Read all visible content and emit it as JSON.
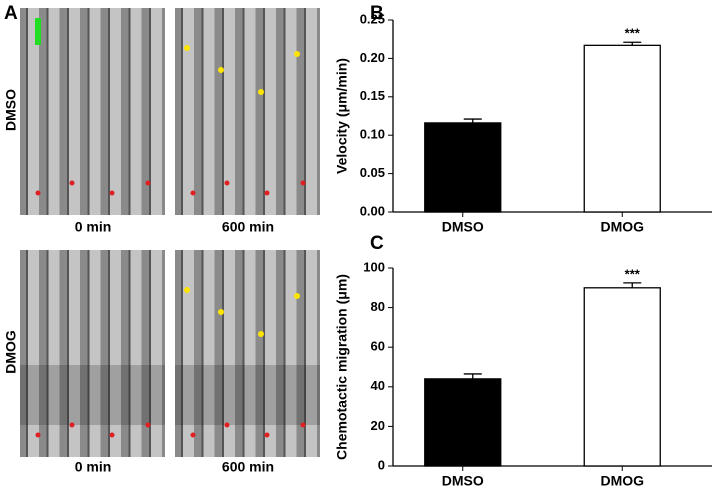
{
  "figure_labels": [
    "A",
    "B",
    "C"
  ],
  "panel_a": {
    "conditions": [
      "DMSO",
      "DMOG"
    ],
    "times": [
      "0 min",
      "600 min"
    ]
  },
  "chart_data": [
    {
      "type": "bar",
      "ylabel": "Velocity (μm/min)",
      "categories": [
        "DMSO",
        "DMOG"
      ],
      "values": [
        0.116,
        0.217
      ],
      "errors": [
        0.005,
        0.004
      ],
      "colors": [
        "#000000",
        "#ffffff"
      ],
      "annotations": [
        "***"
      ],
      "ylim": [
        0,
        0.25
      ],
      "yticks": [
        {
          "value": 0,
          "label": "0.00"
        },
        0.05,
        {
          "value": 0.1,
          "label": "0.10"
        },
        0.15,
        {
          "value": 0.2,
          "label": "0.20"
        },
        0.25
      ]
    },
    {
      "type": "bar",
      "ylabel": "Chemotactic migration (μm)",
      "categories": [
        "DMSO",
        "DMOG"
      ],
      "values": [
        44,
        90
      ],
      "errors": [
        2.5,
        2.5
      ],
      "colors": [
        "#000000",
        "#ffffff"
      ],
      "annotations": [
        "***"
      ],
      "ylim": [
        0,
        100
      ],
      "yticks": [
        0,
        20,
        40,
        60,
        80,
        100
      ]
    }
  ]
}
